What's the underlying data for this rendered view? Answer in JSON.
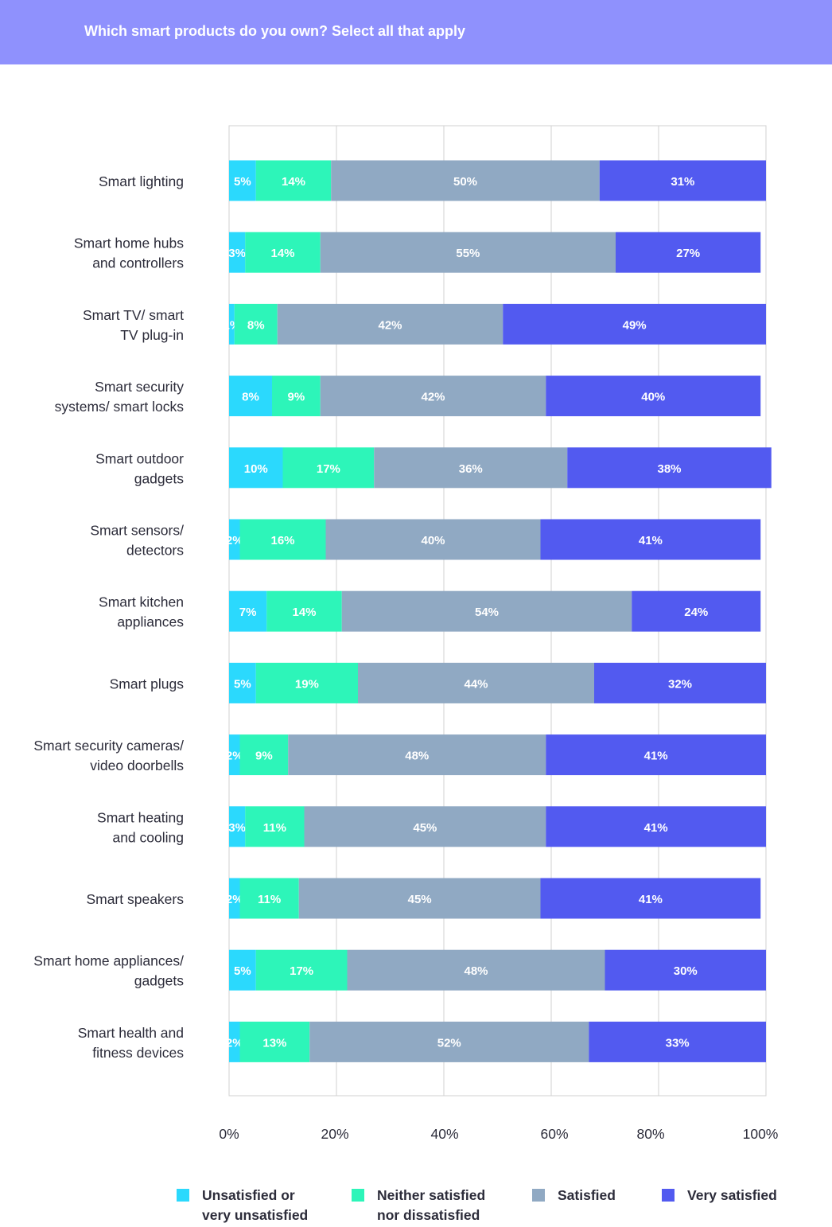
{
  "header": {
    "title": "Which smart products do you own? Select all that apply"
  },
  "colors": {
    "header_bg": "#8f91fd",
    "unsatisfied": "#2bd9fd",
    "neither": "#2df5b9",
    "satisfied": "#90a9c3",
    "very_satisfied": "#525af0",
    "grid": "#d0d0d0",
    "text": "#2c2c3a"
  },
  "chart_data": {
    "type": "bar",
    "orientation": "horizontal",
    "stacked": true,
    "title": "Which smart products do you own? Select all that apply",
    "xlim": [
      0,
      100
    ],
    "x_ticks": [
      "0%",
      "20%",
      "40%",
      "60%",
      "80%",
      "100%"
    ],
    "grid": true,
    "legend_position": "bottom",
    "categories": [
      "Smart lighting",
      "Smart home hubs\nand controllers",
      "Smart TV/ smart\nTV plug-in",
      "Smart security\nsystems/ smart locks",
      "Smart outdoor\ngadgets",
      "Smart sensors/\ndetectors",
      "Smart kitchen\nappliances",
      "Smart plugs",
      "Smart security cameras/\nvideo doorbells",
      "Smart heating\nand cooling",
      "Smart speakers",
      "Smart home appliances/\ngadgets",
      "Smart health and\nfitness devices"
    ],
    "series": [
      {
        "name": "Unsatisfied or\nvery unsatisfied",
        "color_key": "unsatisfied",
        "values": [
          5,
          3,
          1,
          8,
          10,
          2,
          7,
          5,
          2,
          3,
          2,
          5,
          2
        ]
      },
      {
        "name": "Neither satisfied\nnor dissatisfied",
        "color_key": "neither",
        "values": [
          14,
          14,
          8,
          9,
          17,
          16,
          14,
          19,
          9,
          11,
          11,
          17,
          13
        ]
      },
      {
        "name": "Satisfied",
        "color_key": "satisfied",
        "values": [
          50,
          55,
          42,
          42,
          36,
          40,
          54,
          44,
          48,
          45,
          45,
          48,
          52
        ]
      },
      {
        "name": "Very satisfied",
        "color_key": "very_satisfied",
        "values": [
          31,
          27,
          49,
          40,
          38,
          41,
          24,
          32,
          41,
          41,
          41,
          30,
          33
        ]
      }
    ]
  }
}
